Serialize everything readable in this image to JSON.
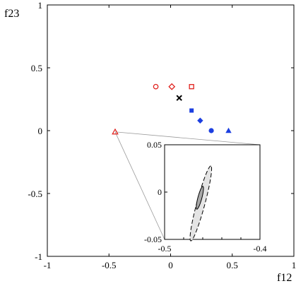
{
  "chart_data": [
    {
      "type": "scatter",
      "xlabel": "f12",
      "ylabel": "f23",
      "xlim": [
        -1,
        1
      ],
      "ylim": [
        -1,
        1
      ],
      "x_ticks": [
        {
          "value": -1,
          "label": "-1"
        },
        {
          "value": -0.5,
          "label": "-0.5"
        },
        {
          "value": 0,
          "label": "0"
        },
        {
          "value": 0.5,
          "label": "0.5"
        },
        {
          "value": 1,
          "label": "1"
        }
      ],
      "y_ticks": [
        {
          "value": -1,
          "label": "-1"
        },
        {
          "value": -0.5,
          "label": "-0.5"
        },
        {
          "value": 0,
          "label": "0"
        },
        {
          "value": 0.5,
          "label": "0.5"
        },
        {
          "value": 1,
          "label": "1"
        }
      ],
      "grid": false,
      "points": [
        {
          "x": -0.12,
          "y": 0.35,
          "marker": "circle-open",
          "color": "#e0201c"
        },
        {
          "x": 0.01,
          "y": 0.35,
          "marker": "diamond-open",
          "color": "#e0201c"
        },
        {
          "x": 0.17,
          "y": 0.35,
          "marker": "square-open",
          "color": "#e0201c"
        },
        {
          "x": 0.07,
          "y": 0.26,
          "marker": "cross",
          "color": "#000000"
        },
        {
          "x": 0.17,
          "y": 0.16,
          "marker": "square-filled",
          "color": "#1c3fe0"
        },
        {
          "x": 0.24,
          "y": 0.08,
          "marker": "diamond-filled",
          "color": "#1c3fe0"
        },
        {
          "x": 0.33,
          "y": 0.0,
          "marker": "circle-filled",
          "color": "#1c3fe0"
        },
        {
          "x": 0.47,
          "y": 0.0,
          "marker": "triangle-filled",
          "color": "#1c3fe0"
        },
        {
          "x": -0.45,
          "y": -0.01,
          "marker": "triangle-open",
          "color": "#e0201c"
        }
      ],
      "zoom_source": {
        "x": -0.45,
        "y": -0.01
      }
    },
    {
      "type": "scatter",
      "subtype": "confidence-contours",
      "xlim": [
        -0.5,
        -0.4
      ],
      "ylim": [
        -0.05,
        0.05
      ],
      "x_ticks": [
        {
          "value": -0.5,
          "label": "-0.5"
        },
        {
          "value": -0.4,
          "label": "-0.4"
        }
      ],
      "y_ticks": [
        {
          "value": -0.05,
          "label": "-0.05"
        },
        {
          "value": 0,
          "label": "0"
        },
        {
          "value": 0.05,
          "label": "0.05"
        }
      ],
      "regions": [
        {
          "level": "outer",
          "style": "dashed",
          "fill": "#e4e4e4",
          "center": {
            "x": -0.462,
            "y": -0.012
          },
          "major_semi": 0.041,
          "minor_semi": 0.0043,
          "angle_deg": 75
        },
        {
          "level": "inner",
          "style": "solid",
          "fill": "#a9a9a9",
          "center": {
            "x": -0.463,
            "y": -0.006
          },
          "major_semi": 0.0125,
          "minor_semi": 0.0021,
          "angle_deg": 75
        }
      ]
    }
  ]
}
